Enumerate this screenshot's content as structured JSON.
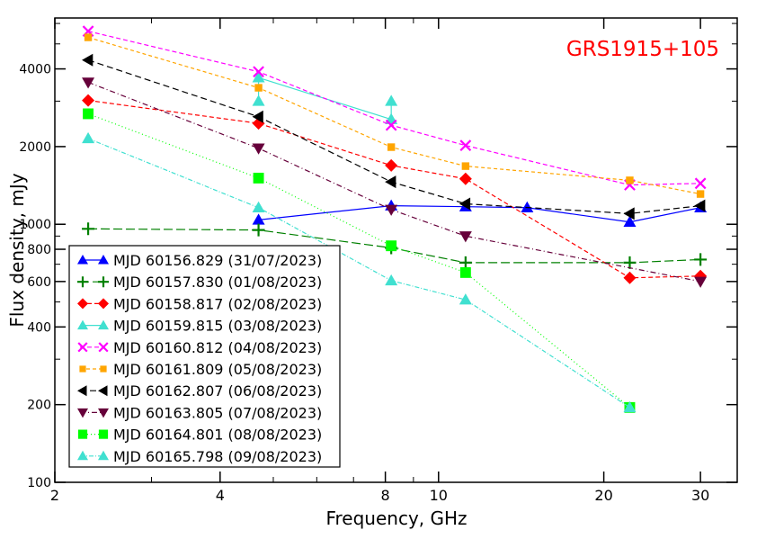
{
  "chart_data": {
    "type": "line",
    "title": "GRS1915+105",
    "title_color": "#ff0000",
    "xlabel": "Frequency, GHz",
    "ylabel": "Flux density, mJy",
    "xscale": "log",
    "yscale": "log",
    "xlim": [
      2,
      35
    ],
    "ylim": [
      100,
      6300
    ],
    "xticks": [
      2,
      4,
      8,
      10,
      20,
      30
    ],
    "yticks": [
      100,
      200,
      400,
      600,
      800,
      1000,
      2000,
      4000
    ],
    "grid": false,
    "legend_position": "bottom-left",
    "series": [
      {
        "name": "MJD 60156.829 (31/07/2023)",
        "color": "#0000ff",
        "marker": "triangle-up",
        "dash": "",
        "x": [
          4.7,
          8.2,
          11.2,
          14.5,
          22.3,
          30
        ],
        "y": [
          1040,
          1180,
          1170,
          1160,
          1020,
          1160
        ]
      },
      {
        "name": "MJD 60157.830 (01/08/2023)",
        "color": "#008000",
        "marker": "plus",
        "dash": "10,4",
        "x": [
          2.3,
          4.7,
          8.2,
          11.2,
          22.3,
          30
        ],
        "y": [
          960,
          950,
          810,
          710,
          710,
          730
        ]
      },
      {
        "name": "MJD 60158.817 (02/08/2023)",
        "color": "#ff0000",
        "marker": "diamond",
        "dash": "5,3",
        "x": [
          2.3,
          4.7,
          8.2,
          11.2,
          22.3,
          30
        ],
        "y": [
          3020,
          2460,
          1690,
          1500,
          620,
          630
        ]
      },
      {
        "name": "MJD 60159.815 (03/08/2023)",
        "color": "#40e0d0",
        "marker": "triangle-up",
        "dash": "",
        "x": [
          4.7,
          4.7,
          8.2,
          8.2
        ],
        "y": [
          3000,
          3700,
          2550,
          3000
        ]
      },
      {
        "name": "MJD 60160.812 (04/08/2023)",
        "color": "#ff00ff",
        "marker": "x",
        "dash": "5,3",
        "x": [
          2.3,
          4.7,
          8.2,
          11.2,
          22.3,
          30
        ],
        "y": [
          5600,
          3900,
          2420,
          2020,
          1420,
          1440
        ]
      },
      {
        "name": "MJD 60161.809 (05/08/2023)",
        "color": "#ffa500",
        "marker": "square-small",
        "dash": "4,3",
        "x": [
          2.3,
          4.7,
          8.2,
          11.2,
          22.3,
          30
        ],
        "y": [
          5300,
          3380,
          1990,
          1680,
          1480,
          1310
        ]
      },
      {
        "name": "MJD 60162.807 (06/08/2023)",
        "color": "#000000",
        "marker": "triangle-left",
        "dash": "7,4",
        "x": [
          2.3,
          4.7,
          8.2,
          11.2,
          22.3,
          30
        ],
        "y": [
          4330,
          2610,
          1460,
          1200,
          1100,
          1180
        ]
      },
      {
        "name": "MJD 60163.805 (07/08/2023)",
        "color": "#66003a",
        "marker": "triangle-down",
        "dash": "6,3,1,3",
        "x": [
          2.3,
          4.7,
          8.2,
          11.2,
          30
        ],
        "y": [
          3550,
          1970,
          1140,
          900,
          600
        ]
      },
      {
        "name": "MJD 60164.801 (08/08/2023)",
        "color": "#00ff00",
        "marker": "square",
        "dash": "1,3",
        "x": [
          2.3,
          4.7,
          8.2,
          11.2,
          22.3
        ],
        "y": [
          2680,
          1510,
          825,
          650,
          195
        ]
      },
      {
        "name": "MJD 60165.798 (09/08/2023)",
        "color": "#40e0d0",
        "marker": "triangle-up",
        "dash": "5,2,1,2",
        "x": [
          2.3,
          4.7,
          8.2,
          11.2,
          22.3
        ],
        "y": [
          2150,
          1160,
          605,
          510,
          195
        ]
      }
    ]
  }
}
